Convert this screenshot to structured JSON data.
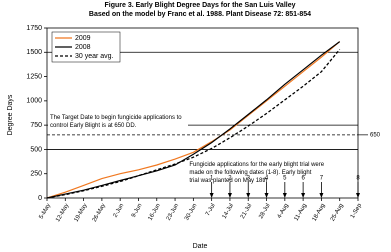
{
  "chart_data": {
    "type": "line",
    "title": "Figure 3. Early Blight Degree Days for the San Luis Valley",
    "subtitle": "Based on the model by Franc et al. 1988. Plant Disease 72: 851-854",
    "x_label": "Date",
    "y_label": "Degree Days",
    "categories": [
      "5-May",
      "12-May",
      "19-May",
      "26-May",
      "2-Jun",
      "9-Jun",
      "16-Jun",
      "23-Jun",
      "30-Jun",
      "7-Jul",
      "14-Jul",
      "21-Jul",
      "28-Jul",
      "4-Aug",
      "11-Aug",
      "18-Aug",
      "25-Aug",
      "1-Sep"
    ],
    "series": [
      {
        "name": "2009",
        "color": "#f07820",
        "dash": false,
        "values": [
          0,
          60,
          130,
          200,
          250,
          290,
          340,
          400,
          470,
          580,
          700,
          850,
          1000,
          1150,
          1300,
          1450,
          1610,
          null
        ]
      },
      {
        "name": "2008",
        "color": "#000000",
        "dash": false,
        "values": [
          0,
          40,
          80,
          130,
          180,
          230,
          280,
          340,
          450,
          570,
          710,
          860,
          1010,
          1170,
          1320,
          1470,
          1610,
          null
        ]
      },
      {
        "name": "30 year avg.",
        "color": "#000000",
        "dash": true,
        "values": [
          0,
          35,
          75,
          120,
          170,
          230,
          290,
          350,
          420,
          510,
          620,
          740,
          870,
          1010,
          1150,
          1300,
          1530,
          null
        ]
      }
    ],
    "ylim": [
      0,
      1750
    ],
    "yticks": [
      0,
      250,
      500,
      750,
      1000,
      1250,
      1500,
      1750
    ],
    "grid_values": [
      500,
      750,
      1500
    ],
    "threshold": 650,
    "annotations": [
      "The Target Date to begin fungicide applications to control Early Blight is at 650 DD.",
      "Fungicide applications for the early blight trial were made on the following dates (1-8). Early blight trial was planted on May 18th"
    ],
    "applications": [
      {
        "label": "1",
        "date": "7-Jul"
      },
      {
        "label": "2",
        "date": "14-Jul"
      },
      {
        "label": "3",
        "date": "21-Jul"
      },
      {
        "label": "4",
        "date": "28-Jul"
      },
      {
        "label": "5",
        "date": "4-Aug"
      },
      {
        "label": "6",
        "date": "11-Aug"
      },
      {
        "label": "7",
        "date": "18-Aug"
      },
      {
        "label": "8",
        "date": "1-Sep"
      }
    ]
  }
}
